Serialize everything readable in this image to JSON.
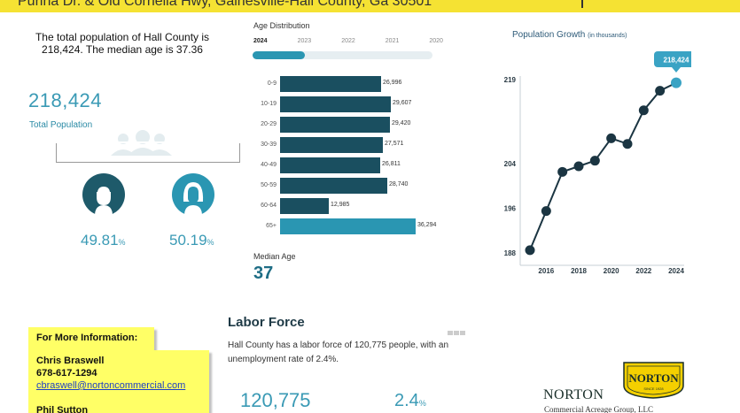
{
  "header": {
    "address": "Purina Dr. & Old Cornelia Hwy, Gainesville-Hall County, Ga  30501"
  },
  "summary": {
    "text": "The total population of Hall County is 218,424.  The median age is 37.36"
  },
  "population": {
    "total": "218,424",
    "total_label": "Total Population",
    "male_pct": "49.81",
    "female_pct": "50.19",
    "pct_sign": "%"
  },
  "age_distribution": {
    "title": "Age Distribution",
    "years": [
      "2024",
      "2023",
      "2022",
      "2021",
      "2020"
    ],
    "slider_fraction": 0.29,
    "max_value": 36294,
    "rows": [
      {
        "label": "0-9",
        "value": 26996,
        "display": "26,996",
        "color": "#1a4f60"
      },
      {
        "label": "10-19",
        "value": 29607,
        "display": "29,607",
        "color": "#1a4f60"
      },
      {
        "label": "20-29",
        "value": 29420,
        "display": "29,420",
        "color": "#1a4f60"
      },
      {
        "label": "30-39",
        "value": 27571,
        "display": "27,571",
        "color": "#1a4f60"
      },
      {
        "label": "40-49",
        "value": 26811,
        "display": "26,811",
        "color": "#1a4f60"
      },
      {
        "label": "50-59",
        "value": 28740,
        "display": "28,740",
        "color": "#1a4f60"
      },
      {
        "label": "60-64",
        "value": 12985,
        "display": "12,985",
        "color": "#1a4f60"
      },
      {
        "label": "65+",
        "value": 36294,
        "display": "36,294",
        "color": "#2a96b2"
      }
    ],
    "median_label": "Median Age",
    "median_value": "37"
  },
  "chart_data": {
    "type": "line",
    "title": "Population Growth",
    "subtitle": "(in thousands)",
    "x": [
      2015,
      2016,
      2017,
      2018,
      2019,
      2020,
      2021,
      2022,
      2023,
      2024
    ],
    "series": [
      {
        "values": [
          188.5,
          195.5,
          202.5,
          203.5,
          204.5,
          208.5,
          207.5,
          213.5,
          217.0,
          218.424
        ]
      }
    ],
    "x_tick_labels": [
      "2016",
      "2018",
      "2020",
      "2022",
      "2024"
    ],
    "y_tick_labels": [
      "188",
      "196",
      "204",
      "219"
    ],
    "callout": "218,424",
    "line_color": "#1b3542",
    "point_color": "#1b3542",
    "last_point_color": "#3aa3c4"
  },
  "labor": {
    "title": "Labor Force",
    "text": "Hall County has a labor force of 120,775 people, with an unemployment rate of 2.4%.",
    "force": "120,775",
    "rate": "2.4",
    "rate_sign": "%"
  },
  "contact": {
    "heading": "For More Information:",
    "name1": "Chris Braswell",
    "phone1": "678-617-1294",
    "email1": "cbraswell@nortoncommercial.com",
    "name2": "Phil Sutton"
  },
  "brand": {
    "name": "NORTON",
    "subtitle": "Commercial Acreage Group, LLC",
    "badge_text": "NORTON",
    "badge_since": "SINCE 1928"
  },
  "colors": {
    "accent_yellow": "#f5e233",
    "teal": "#2a96b2",
    "dark_teal": "#1a4f60"
  }
}
